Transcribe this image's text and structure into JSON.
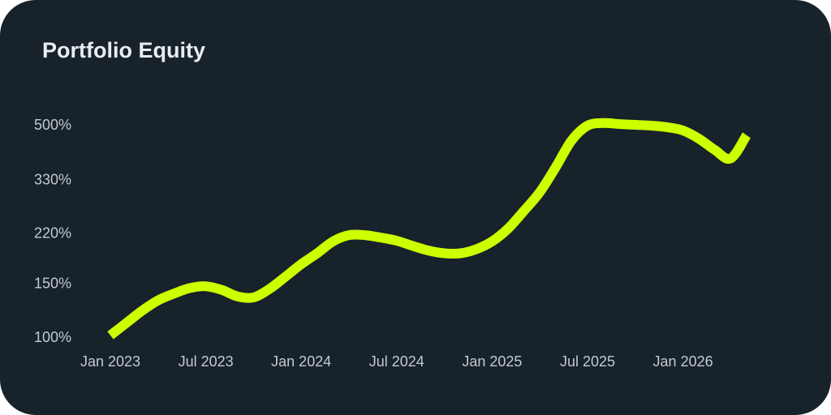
{
  "chart_data": {
    "type": "line",
    "title": "Portfolio Equity",
    "x": [
      "2023-01",
      "2023-02",
      "2023-03",
      "2023-04",
      "2023-05",
      "2023-06",
      "2023-07",
      "2023-08",
      "2023-09",
      "2023-10",
      "2023-11",
      "2023-12",
      "2024-01",
      "2024-02",
      "2024-03",
      "2024-04",
      "2024-05",
      "2024-06",
      "2024-07",
      "2024-08",
      "2024-09",
      "2024-10",
      "2024-11",
      "2024-12",
      "2025-01",
      "2025-02",
      "2025-03",
      "2025-04",
      "2025-05",
      "2025-06",
      "2025-07",
      "2025-08",
      "2025-09",
      "2025-10",
      "2025-11",
      "2025-12",
      "2026-01",
      "2026-02",
      "2026-03",
      "2026-04",
      "2026-05"
    ],
    "series": [
      {
        "name": "Portfolio Equity",
        "color": "#ccff00",
        "values": [
          102,
          112,
          123,
          133,
          140,
          146,
          148,
          144,
          137,
          136,
          145,
          159,
          175,
          190,
          208,
          218,
          218,
          214,
          209,
          201,
          194,
          190,
          190,
          196,
          208,
          229,
          262,
          302,
          365,
          447,
          500,
          510,
          506,
          503,
          500,
          494,
          482,
          453,
          416,
          390,
          465
        ]
      }
    ],
    "xlim": [
      "2023-01",
      "2026-05"
    ],
    "xticks": [
      {
        "value": "2023-01",
        "label": "Jan 2023"
      },
      {
        "value": "2023-07",
        "label": "Jul 2023"
      },
      {
        "value": "2024-01",
        "label": "Jan 2024"
      },
      {
        "value": "2024-07",
        "label": "Jul 2024"
      },
      {
        "value": "2025-01",
        "label": "Jan 2025"
      },
      {
        "value": "2025-07",
        "label": "Jul 2025"
      },
      {
        "value": "2026-01",
        "label": "Jan 2026"
      }
    ],
    "ylim": [
      100,
      500
    ],
    "log_y": true,
    "yticks": [
      {
        "value": 100,
        "label": "100%"
      },
      {
        "value": 150,
        "label": "150%"
      },
      {
        "value": 220,
        "label": "220%"
      },
      {
        "value": 330,
        "label": "330%"
      },
      {
        "value": 500,
        "label": "500%"
      }
    ],
    "grid": false
  }
}
